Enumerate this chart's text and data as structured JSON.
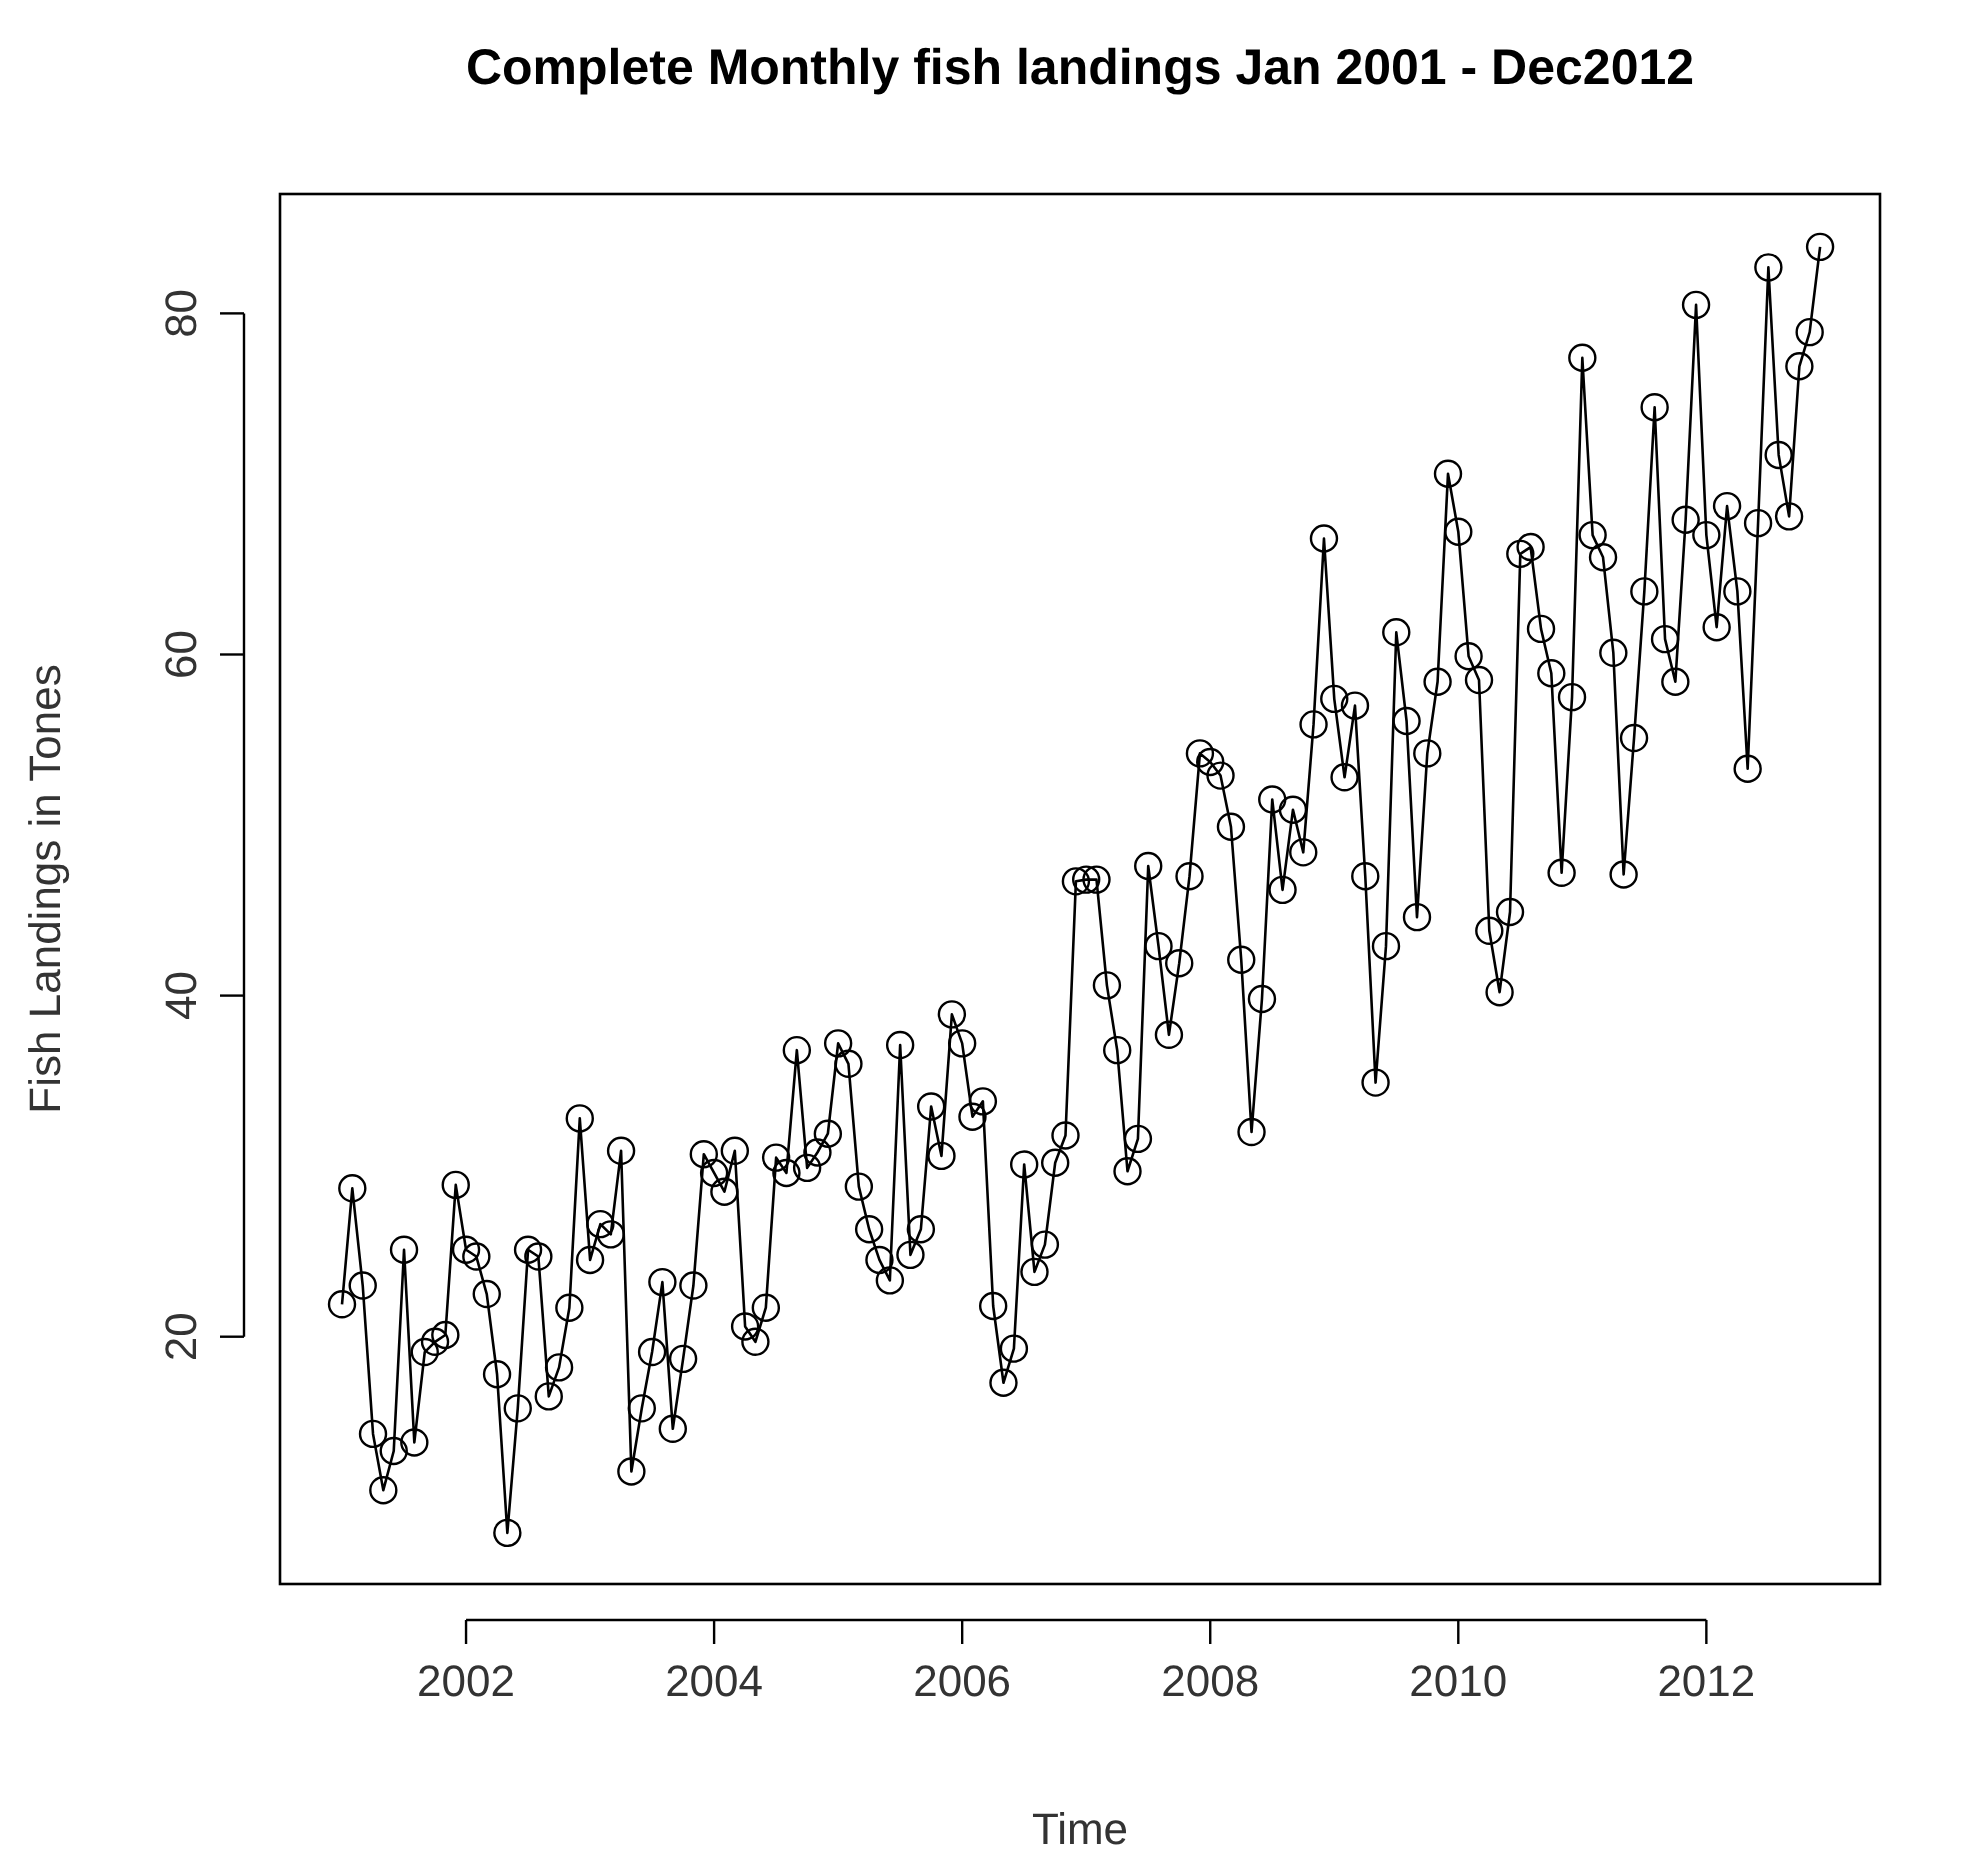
{
  "chart_data": {
    "type": "line",
    "title": "Complete Monthly fish landings Jan 2001 - Dec2012",
    "xlabel": "Time",
    "ylabel": "Fish Landings in Tones",
    "x": [
      2001,
      2001.083,
      2001.167,
      2001.25,
      2001.333,
      2001.417,
      2001.5,
      2001.583,
      2001.667,
      2001.75,
      2001.833,
      2001.917,
      2002,
      2002.083,
      2002.167,
      2002.25,
      2002.333,
      2002.417,
      2002.5,
      2002.583,
      2002.667,
      2002.75,
      2002.833,
      2002.917,
      2003,
      2003.083,
      2003.167,
      2003.25,
      2003.333,
      2003.417,
      2003.5,
      2003.583,
      2003.667,
      2003.75,
      2003.833,
      2003.917,
      2004,
      2004.083,
      2004.167,
      2004.25,
      2004.333,
      2004.417,
      2004.5,
      2004.583,
      2004.667,
      2004.75,
      2004.833,
      2004.917,
      2005,
      2005.083,
      2005.167,
      2005.25,
      2005.333,
      2005.417,
      2005.5,
      2005.583,
      2005.667,
      2005.75,
      2005.833,
      2005.917,
      2006,
      2006.083,
      2006.167,
      2006.25,
      2006.333,
      2006.417,
      2006.5,
      2006.583,
      2006.667,
      2006.75,
      2006.833,
      2006.917,
      2007,
      2007.083,
      2007.167,
      2007.25,
      2007.333,
      2007.417,
      2007.5,
      2007.583,
      2007.667,
      2007.75,
      2007.833,
      2007.917,
      2008,
      2008.083,
      2008.167,
      2008.25,
      2008.333,
      2008.417,
      2008.5,
      2008.583,
      2008.667,
      2008.75,
      2008.833,
      2008.917,
      2009,
      2009.083,
      2009.167,
      2009.25,
      2009.333,
      2009.417,
      2009.5,
      2009.583,
      2009.667,
      2009.75,
      2009.833,
      2009.917,
      2010,
      2010.083,
      2010.167,
      2010.25,
      2010.333,
      2010.417,
      2010.5,
      2010.583,
      2010.667,
      2010.75,
      2010.833,
      2010.917,
      2011,
      2011.083,
      2011.167,
      2011.25,
      2011.333,
      2011.417,
      2011.5,
      2011.583,
      2011.667,
      2011.75,
      2011.833,
      2011.917,
      2012,
      2012.083,
      2012.167,
      2012.25,
      2012.333,
      2012.417,
      2012.5,
      2012.583,
      2012.667,
      2012.75,
      2012.833,
      2012.917
    ],
    "series": [
      {
        "color": "#000000",
        "values": [
          21.9,
          28.7,
          23.0,
          14.3,
          11.0,
          13.3,
          25.1,
          13.8,
          19.1,
          19.7,
          20.1,
          28.9,
          25.1,
          24.7,
          22.5,
          17.8,
          8.5,
          15.8,
          25.1,
          24.7,
          16.5,
          18.2,
          21.7,
          32.8,
          24.5,
          26.6,
          26.0,
          30.9,
          12.1,
          15.8,
          19.1,
          23.2,
          14.6,
          18.7,
          23.0,
          30.7,
          29.6,
          28.5,
          30.9,
          20.6,
          19.7,
          21.7,
          30.5,
          29.6,
          36.8,
          29.9,
          30.8,
          31.9,
          37.2,
          36.0,
          28.8,
          26.3,
          24.5,
          23.3,
          37.1,
          24.8,
          26.3,
          33.5,
          30.6,
          38.9,
          37.2,
          32.9,
          33.8,
          21.8,
          17.3,
          19.3,
          30.1,
          23.8,
          25.4,
          30.2,
          31.8,
          46.7,
          46.8,
          46.8,
          40.6,
          36.8,
          29.7,
          31.6,
          47.6,
          42.9,
          37.7,
          41.9,
          47.0,
          54.2,
          53.7,
          52.9,
          49.9,
          42.1,
          32.0,
          39.8,
          51.5,
          46.2,
          50.9,
          48.4,
          55.9,
          66.8,
          57.4,
          52.8,
          57.0,
          47.0,
          34.9,
          42.9,
          61.3,
          56.1,
          44.6,
          54.2,
          58.4,
          70.6,
          67.2,
          59.9,
          58.5,
          43.8,
          40.2,
          44.9,
          65.9,
          66.3,
          61.5,
          58.9,
          47.2,
          57.5,
          77.4,
          67.0,
          65.7,
          60.1,
          47.1,
          55.1,
          63.7,
          74.5,
          60.9,
          58.4,
          67.9,
          80.5,
          67.0,
          61.6,
          68.7,
          63.7,
          53.3,
          67.7,
          82.7,
          71.7,
          68.1,
          76.9,
          78.9,
          83.9
        ]
      }
    ],
    "xlim": [
      2000.5,
      2013.4
    ],
    "ylim": [
      5.5,
      87
    ],
    "xticks": [
      2002,
      2004,
      2006,
      2008,
      2010,
      2012
    ],
    "yticks": [
      20,
      40,
      60,
      80
    ],
    "marker": "circle",
    "line_style": "solid",
    "grid": false
  }
}
